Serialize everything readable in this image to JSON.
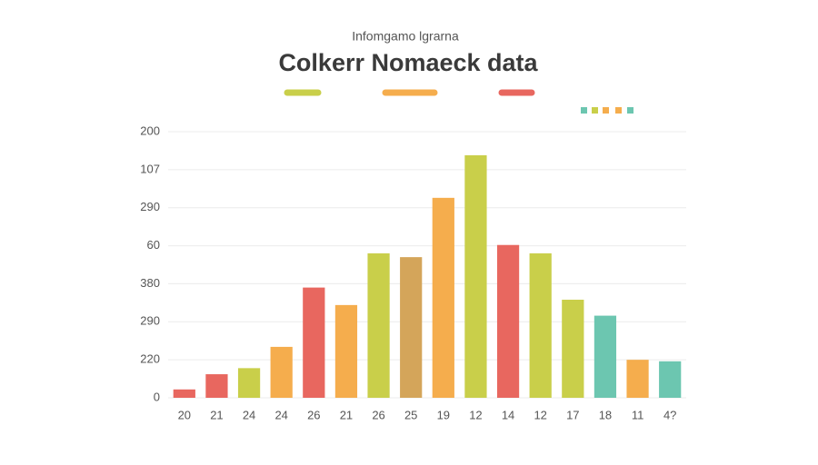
{
  "chart_data": {
    "type": "bar",
    "subtitle": "Infomgamo lgrarna",
    "title": "Colkerr Nomaeck data",
    "categories": [
      "20",
      "21",
      "24",
      "24",
      "26",
      "21",
      "26",
      "25",
      "19",
      "12",
      "14",
      "12",
      "17",
      "18",
      "11",
      "4?"
    ],
    "values": [
      11,
      31,
      39,
      67,
      145,
      122,
      190,
      185,
      263,
      319,
      201,
      190,
      129,
      108,
      50,
      48
    ],
    "colors": [
      "#e8675f",
      "#e8675f",
      "#c9cf4a",
      "#f5ad4d",
      "#e8675f",
      "#f5ad4d",
      "#c9cf4a",
      "#d4a55a",
      "#f5ad4d",
      "#c9cf4a",
      "#e8675f",
      "#c9cf4a",
      "#c9cf4a",
      "#6cc6b0",
      "#f5ad4d",
      "#6cc6b0"
    ],
    "ylim": [
      0,
      350
    ],
    "yticks": [
      0,
      {
        "value": 50,
        "label": "220"
      },
      {
        "value": 100,
        "label": "290"
      },
      {
        "value": 150,
        "label": "380"
      },
      {
        "value": 200,
        "label": "60"
      },
      {
        "value": 250,
        "label": "290"
      },
      {
        "value": 300,
        "label": "107"
      },
      {
        "value": 350,
        "label": "200"
      }
    ],
    "grid": true
  }
}
